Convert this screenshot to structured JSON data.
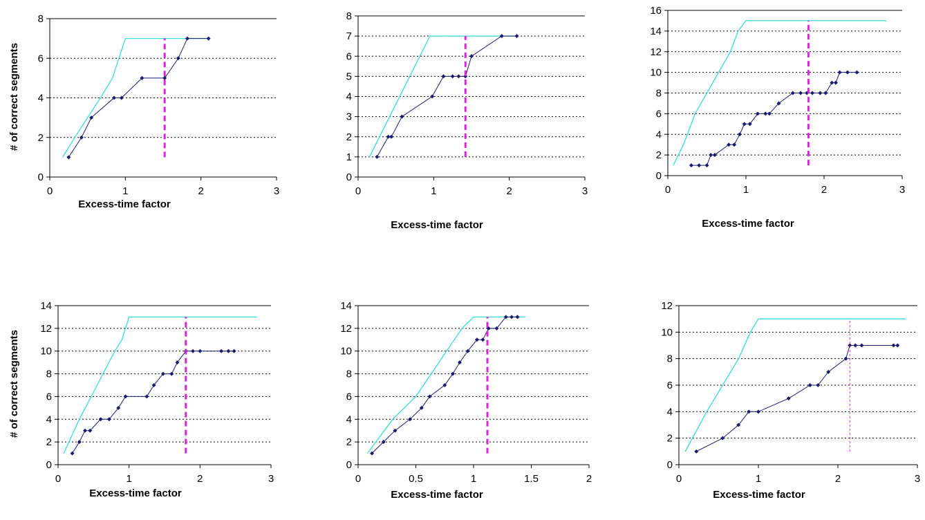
{
  "colors": {
    "ideal": "#33dddd",
    "actual": "#1a1a6e",
    "cutoff": "#dd22dd",
    "grid": "#000000"
  },
  "chart_data": [
    {
      "type": "line",
      "xlabel": "Excess-time factor",
      "ylabel": "# of correct segments",
      "xlim": [
        0,
        3
      ],
      "xticks": [
        0,
        1,
        2,
        3
      ],
      "ylim": [
        0,
        8
      ],
      "yticks": [
        0,
        2,
        4,
        6,
        8
      ],
      "grid": "horizontal-dotted",
      "series": [
        {
          "role": "ideal",
          "x": [
            0.17,
            0.33,
            0.5,
            0.67,
            0.83,
            1.0,
            2.1
          ],
          "y": [
            1,
            2,
            3,
            4,
            5,
            7,
            7
          ]
        },
        {
          "role": "actual",
          "x": [
            0.25,
            0.42,
            0.55,
            0.85,
            0.95,
            1.22,
            1.52,
            1.7,
            1.82,
            2.1
          ],
          "y": [
            1,
            2,
            3,
            4,
            4,
            5,
            5,
            6,
            7,
            7
          ]
        }
      ],
      "cutoff": {
        "x": 1.52,
        "y_from": 1,
        "y_to": 7
      }
    },
    {
      "type": "line",
      "xlabel": "Excess-time factor",
      "ylabel": "",
      "xlim": [
        0,
        3
      ],
      "xticks": [
        0,
        1,
        2,
        3
      ],
      "ylim": [
        0,
        8
      ],
      "yticks": [
        0,
        1,
        2,
        3,
        4,
        5,
        6,
        7,
        8
      ],
      "grid": "horizontal-dotted",
      "series": [
        {
          "role": "ideal",
          "x": [
            0.15,
            0.95,
            2.1
          ],
          "y": [
            1,
            7,
            7
          ]
        },
        {
          "role": "actual",
          "x": [
            0.25,
            0.4,
            0.44,
            0.58,
            0.98,
            1.13,
            1.25,
            1.33,
            1.42,
            1.5,
            1.9,
            2.1
          ],
          "y": [
            1,
            2,
            2,
            3,
            4,
            5,
            5,
            5,
            5,
            6,
            7,
            7
          ]
        }
      ],
      "cutoff": {
        "x": 1.42,
        "y_from": 1,
        "y_to": 7
      }
    },
    {
      "type": "line",
      "xlabel": "Excess-time factor",
      "ylabel": "",
      "xlim": [
        0,
        3
      ],
      "xticks": [
        0,
        1,
        2,
        3
      ],
      "ylim": [
        0,
        16
      ],
      "yticks": [
        0,
        2,
        4,
        6,
        8,
        10,
        12,
        14,
        16
      ],
      "grid": "horizontal-dotted",
      "series": [
        {
          "role": "ideal",
          "x": [
            0.07,
            0.2,
            0.35,
            0.5,
            0.65,
            0.8,
            0.9,
            1.0,
            2.8
          ],
          "y": [
            1,
            3,
            6,
            8,
            10,
            12,
            14,
            15,
            15
          ]
        },
        {
          "role": "actual",
          "x": [
            0.3,
            0.4,
            0.5,
            0.55,
            0.6,
            0.78,
            0.85,
            0.92,
            0.98,
            1.05,
            1.15,
            1.25,
            1.3,
            1.42,
            1.6,
            1.7,
            1.78,
            1.85,
            1.95,
            2.02,
            2.1,
            2.15,
            2.2,
            2.3,
            2.42
          ],
          "y": [
            1,
            1,
            1,
            2,
            2,
            3,
            3,
            4,
            5,
            5,
            6,
            6,
            6,
            7,
            8,
            8,
            8,
            8,
            8,
            8,
            9,
            9,
            10,
            10,
            10
          ]
        }
      ],
      "cutoff": {
        "x": 1.8,
        "y_from": 1,
        "y_to": 15
      }
    },
    {
      "type": "line",
      "xlabel": "Excess-time factor",
      "ylabel": "# of correct segments",
      "xlim": [
        0,
        3
      ],
      "xticks": [
        0,
        1,
        2,
        3
      ],
      "ylim": [
        0,
        14
      ],
      "yticks": [
        0,
        2,
        4,
        6,
        8,
        10,
        12,
        14
      ],
      "grid": "horizontal-dotted",
      "series": [
        {
          "role": "ideal",
          "x": [
            0.08,
            0.3,
            0.55,
            0.8,
            0.9,
            1.0,
            2.8
          ],
          "y": [
            1,
            4,
            7,
            10,
            11,
            13,
            13
          ]
        },
        {
          "role": "actual",
          "x": [
            0.2,
            0.3,
            0.38,
            0.45,
            0.6,
            0.72,
            0.85,
            0.95,
            1.25,
            1.35,
            1.48,
            1.6,
            1.68,
            1.8,
            1.9,
            2.0,
            2.3,
            2.4,
            2.48
          ],
          "y": [
            1,
            2,
            3,
            3,
            4,
            4,
            5,
            6,
            6,
            7,
            8,
            8,
            9,
            10,
            10,
            10,
            10,
            10,
            10
          ]
        }
      ],
      "cutoff": {
        "x": 1.8,
        "y_from": 1,
        "y_to": 13
      }
    },
    {
      "type": "line",
      "xlabel": "Excess-time factor",
      "ylabel": "",
      "xlim": [
        0,
        2
      ],
      "xticks": [
        0,
        0.5,
        1,
        1.5,
        2
      ],
      "ylim": [
        0,
        14
      ],
      "yticks": [
        0,
        2,
        4,
        6,
        8,
        10,
        12,
        14
      ],
      "grid": "horizontal-dotted",
      "series": [
        {
          "role": "ideal",
          "x": [
            0.08,
            0.3,
            0.5,
            0.7,
            0.9,
            1.0,
            1.45
          ],
          "y": [
            1,
            4,
            6,
            9,
            12,
            13,
            13
          ]
        },
        {
          "role": "actual",
          "x": [
            0.12,
            0.22,
            0.32,
            0.45,
            0.55,
            0.62,
            0.75,
            0.82,
            0.88,
            0.95,
            1.03,
            1.08,
            1.13,
            1.2,
            1.28,
            1.33,
            1.38
          ],
          "y": [
            1,
            2,
            3,
            4,
            5,
            6,
            7,
            8,
            9,
            10,
            11,
            11,
            12,
            12,
            13,
            13,
            13
          ]
        }
      ],
      "cutoff": {
        "x": 1.12,
        "y_from": 1,
        "y_to": 13
      }
    },
    {
      "type": "line",
      "xlabel": "Excess-time factor",
      "ylabel": "",
      "xlim": [
        0,
        3
      ],
      "xticks": [
        0,
        1,
        2,
        3
      ],
      "ylim": [
        0,
        12
      ],
      "yticks": [
        0,
        2,
        4,
        6,
        8,
        10,
        12
      ],
      "grid": "horizontal-dotted",
      "series": [
        {
          "role": "ideal",
          "x": [
            0.08,
            0.35,
            0.55,
            0.75,
            0.9,
            1.0,
            2.85
          ],
          "y": [
            1,
            4,
            6,
            8,
            10,
            11,
            11
          ]
        },
        {
          "role": "actual",
          "x": [
            0.22,
            0.55,
            0.75,
            0.88,
            1.0,
            1.38,
            1.65,
            1.75,
            1.88,
            2.1,
            2.15,
            2.22,
            2.3,
            2.7,
            2.75
          ],
          "y": [
            1,
            2,
            3,
            4,
            4,
            5,
            6,
            6,
            7,
            8,
            9,
            9,
            9,
            9,
            9
          ]
        }
      ],
      "cutoff": {
        "x": 2.15,
        "y_from": 1,
        "y_to": 11
      }
    }
  ]
}
